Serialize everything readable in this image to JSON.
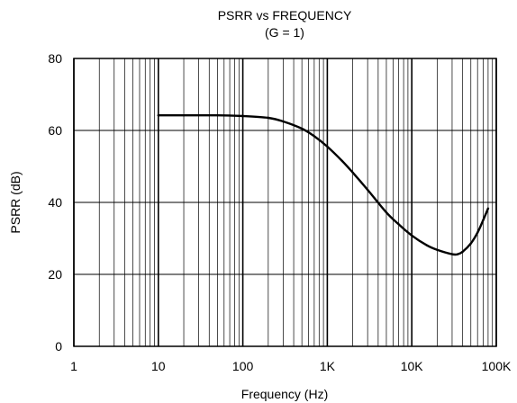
{
  "chart_data": {
    "type": "line",
    "title": "PSRR vs FREQUENCY",
    "subtitle": "(G = 1)",
    "xlabel": "Frequency (Hz)",
    "ylabel": "PSRR (dB)",
    "xscale": "log",
    "xlim": [
      1,
      100000
    ],
    "ylim": [
      0,
      80
    ],
    "grid": true,
    "x_ticks": [
      1,
      10,
      100,
      1000,
      10000,
      100000
    ],
    "x_tick_labels": [
      "1",
      "10",
      "100",
      "1K",
      "10K",
      "100K"
    ],
    "y_ticks": [
      0,
      20,
      40,
      60,
      80
    ],
    "y_tick_labels": [
      "0",
      "20",
      "40",
      "60",
      "80"
    ],
    "series": [
      {
        "x": [
          10,
          20,
          50,
          100,
          200,
          300,
          500,
          700,
          1000,
          1500,
          2000,
          3000,
          5000,
          7000,
          10000,
          15000,
          20000,
          30000,
          35000,
          40000,
          50000,
          60000,
          70000,
          80000
        ],
        "y": [
          64.2,
          64.2,
          64.2,
          64.0,
          63.5,
          62.5,
          60.5,
          58.4,
          55.5,
          51.5,
          48.3,
          43.5,
          37.2,
          33.9,
          30.8,
          28.1,
          26.8,
          25.6,
          25.6,
          26.3,
          28.6,
          31.6,
          35.1,
          38.3
        ]
      }
    ]
  }
}
